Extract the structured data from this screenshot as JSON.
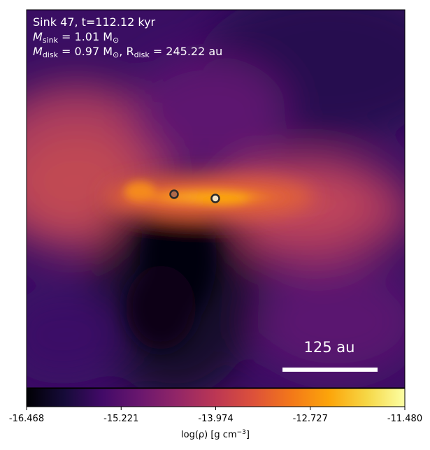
{
  "annotation": {
    "line1": "Sink 47, t=112.12 kyr",
    "line2_symbol": "M",
    "line2_sub": "sink",
    "line2_rest": " = 1.01 M",
    "line2_sun": "⊙",
    "line3_symbol": "M",
    "line3_sub": "disk",
    "line3_rest": " = 0.97 M",
    "line3_sun": "⊙",
    "line3_comma": ", R",
    "line3_sub2": "disk",
    "line3_rest2": " = 245.22 au"
  },
  "scale_bar": {
    "label": "125 au"
  },
  "colorbar": {
    "colormap": "inferno",
    "vmin": -16.468,
    "vmax": -11.48,
    "ticks": [
      "-16.468",
      "-15.221",
      "-13.974",
      "-12.727",
      "-11.480"
    ],
    "label_prefix": "log(ρ) [g cm",
    "label_exp": "−3",
    "label_suffix": "]"
  },
  "sinks": [
    {
      "name": "sink-47-secondary",
      "fill": "#b06a4a"
    },
    {
      "name": "sink-47-primary",
      "fill": "#f4e6c8"
    }
  ],
  "colors": {
    "background": "#2f0c5c",
    "disk": "#fb9b12",
    "marker_edge": "#2a2a2a"
  }
}
